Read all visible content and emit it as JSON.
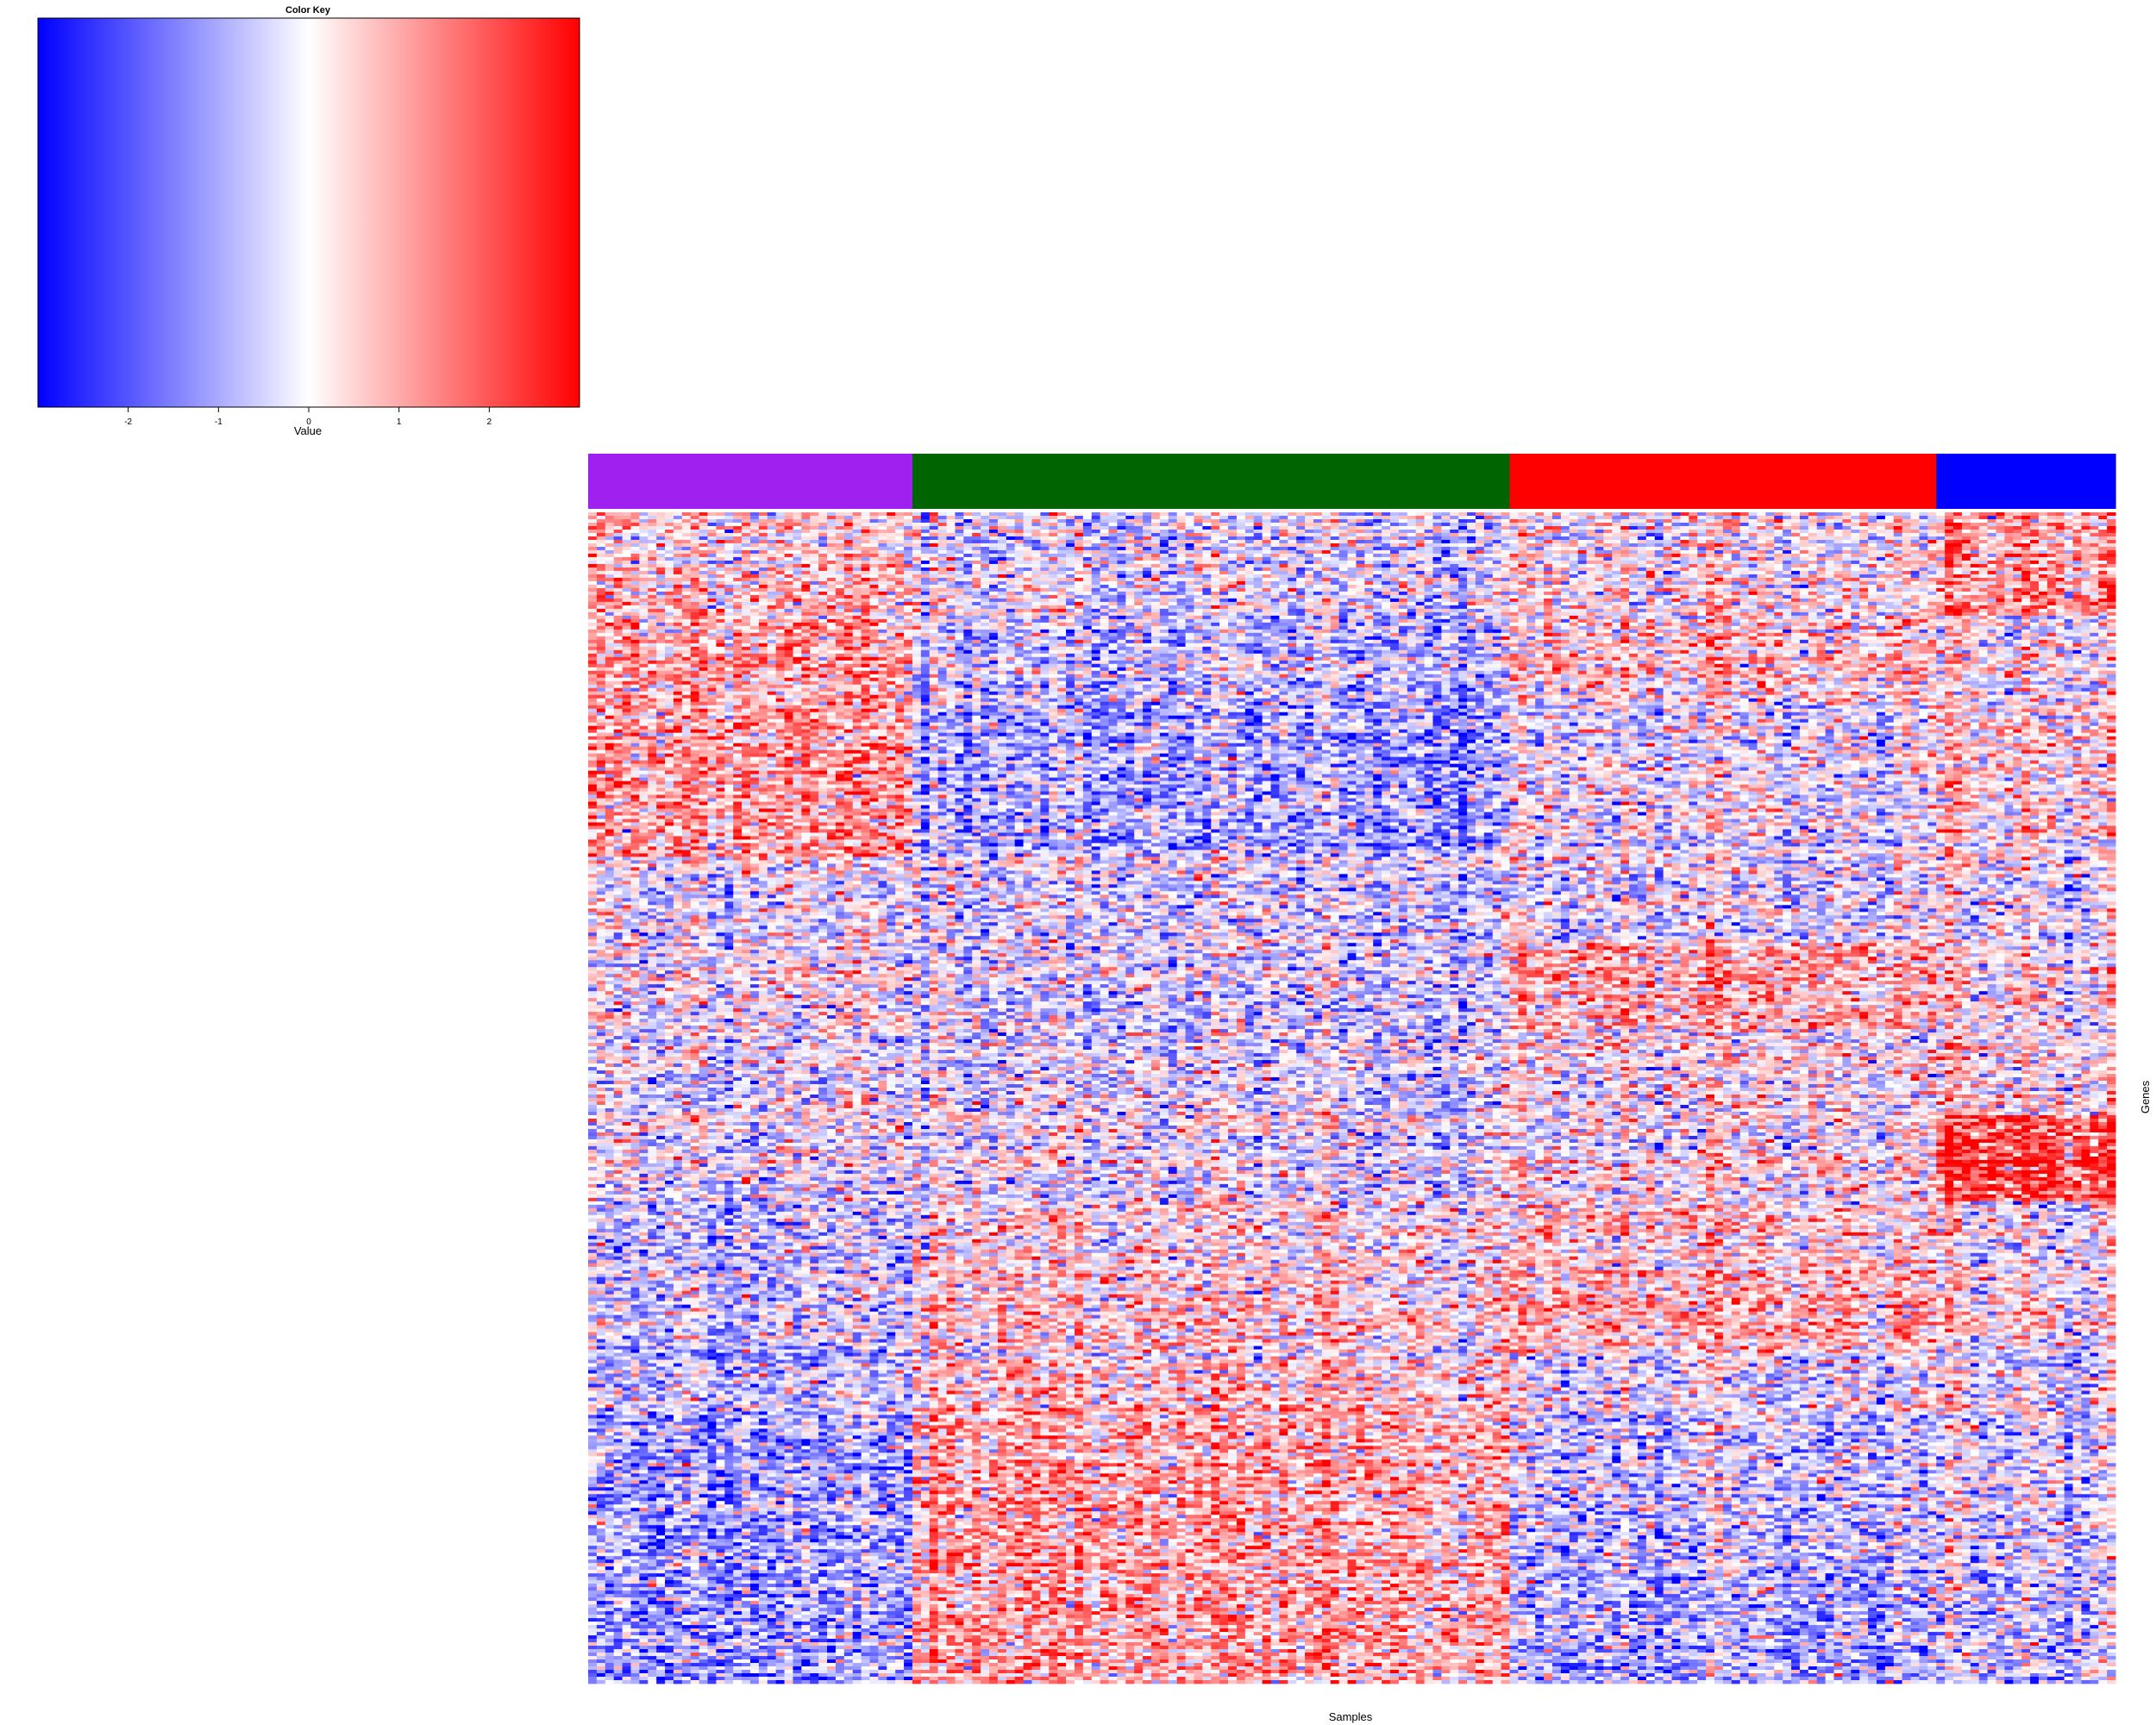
{
  "chart_data": {
    "type": "heatmap",
    "title": "",
    "xlabel": "Samples",
    "ylabel": "Genes",
    "color_key": {
      "title": "Color Key",
      "xlabel": "Value",
      "range": [
        -3,
        3
      ],
      "ticks": [
        -2,
        -1,
        0,
        1,
        2
      ],
      "tick_labels": [
        "-2",
        "-1",
        "0",
        "1",
        "2"
      ],
      "low_color": "#0000ff",
      "mid_color": "#ffffff",
      "high_color": "#ff0000"
    },
    "sample_groups": [
      {
        "color": "#a020f0",
        "n_samples": 38
      },
      {
        "color": "#006400",
        "n_samples": 70
      },
      {
        "color": "#ff0000",
        "n_samples": 50
      },
      {
        "color": "#0000ff",
        "n_samples": 21
      }
    ],
    "n_genes": 340,
    "gene_blocks": [
      {
        "rows": [
          0,
          30
        ],
        "group_means": [
          0.6,
          -0.3,
          0.1,
          1.3
        ]
      },
      {
        "rows": [
          30,
          55
        ],
        "group_means": [
          1.0,
          -0.7,
          0.4,
          0.1
        ]
      },
      {
        "rows": [
          55,
          100
        ],
        "group_means": [
          1.1,
          -1.0,
          -0.2,
          0.5
        ]
      },
      {
        "rows": [
          100,
          125
        ],
        "group_means": [
          0.0,
          -0.3,
          -0.2,
          0.0
        ]
      },
      {
        "rows": [
          125,
          150
        ],
        "group_means": [
          0.1,
          -0.4,
          0.9,
          0.3
        ]
      },
      {
        "rows": [
          150,
          175
        ],
        "group_means": [
          -0.2,
          -0.3,
          0.1,
          0.4
        ]
      },
      {
        "rows": [
          175,
          185
        ],
        "group_means": [
          0.0,
          -0.1,
          0.0,
          2.2
        ]
      },
      {
        "rows": [
          185,
          200
        ],
        "group_means": [
          -0.2,
          -0.2,
          0.2,
          2.4
        ]
      },
      {
        "rows": [
          200,
          245
        ],
        "group_means": [
          -0.5,
          0.3,
          0.6,
          0.2
        ]
      },
      {
        "rows": [
          245,
          260
        ],
        "group_means": [
          -0.5,
          0.6,
          -0.2,
          0.0
        ]
      },
      {
        "rows": [
          260,
          300
        ],
        "group_means": [
          -1.0,
          0.9,
          -0.6,
          -0.2
        ]
      },
      {
        "rows": [
          300,
          340
        ],
        "group_means": [
          -1.0,
          1.0,
          -0.8,
          -0.4
        ]
      }
    ]
  }
}
